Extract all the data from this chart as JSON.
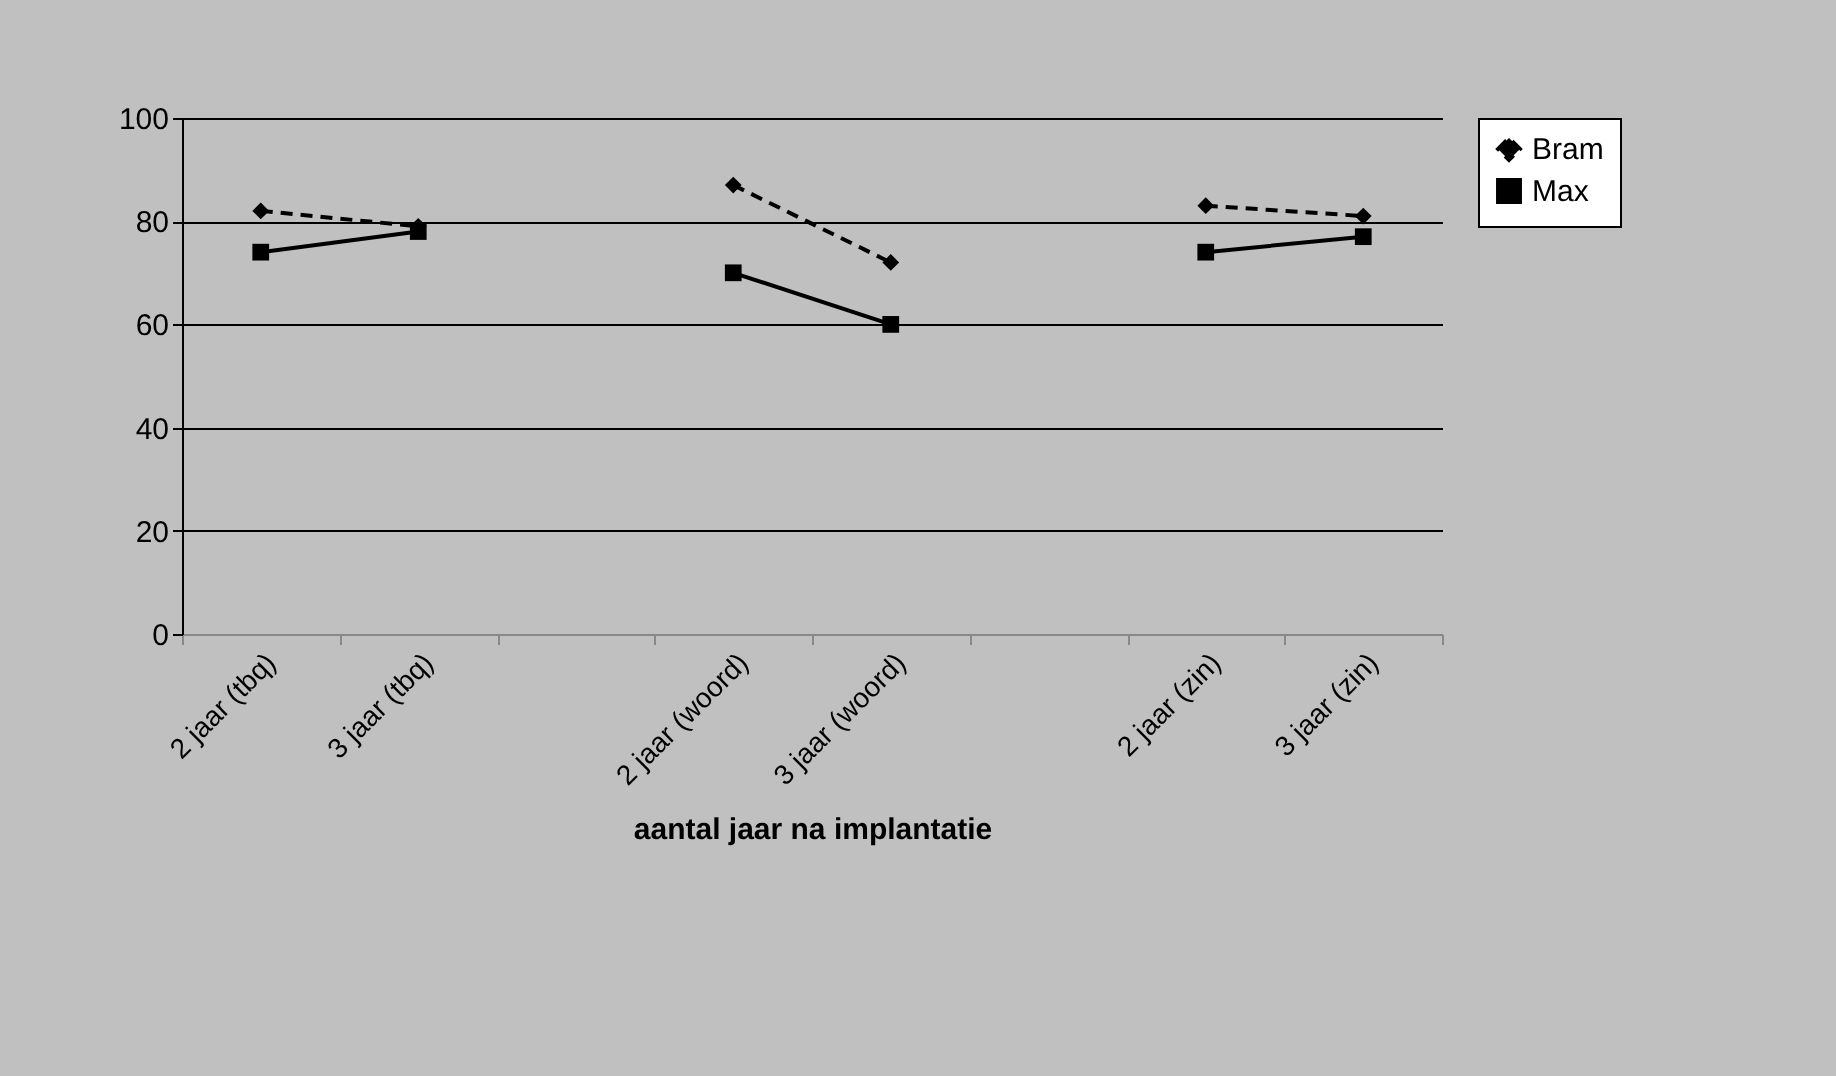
{
  "chart_data": {
    "type": "line",
    "xlabel": "aantal jaar na implantatie",
    "categories": [
      "2 jaar (tbq)",
      "3 jaar (tbq)",
      null,
      "2 jaar (woord)",
      "3 jaar (woord)",
      null,
      "2 jaar (zin)",
      "3 jaar (zin)"
    ],
    "series": [
      {
        "name": "Bram",
        "color": "#000000",
        "line_style": "dashed",
        "marker": "diamond",
        "values": [
          82,
          79,
          null,
          87,
          72,
          null,
          83,
          81
        ]
      },
      {
        "name": "Max",
        "color": "#000000",
        "line_style": "solid",
        "marker": "square",
        "values": [
          74,
          78,
          null,
          70,
          60,
          null,
          74,
          77
        ]
      }
    ],
    "ylim": [
      0,
      100
    ],
    "yticks": [
      0,
      20,
      40,
      60,
      80,
      100
    ],
    "grid": "y",
    "legend": "right"
  }
}
